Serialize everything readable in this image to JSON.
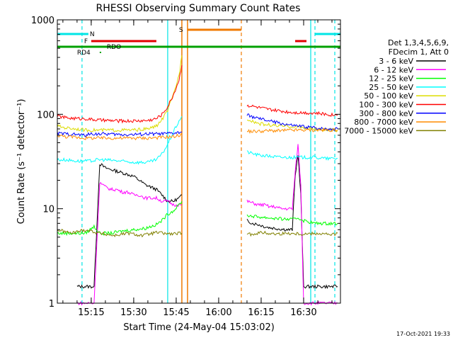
{
  "chart_data": {
    "type": "line",
    "title": "RHESSI Observing Summary Count Rates",
    "xlabel": "Start Time (24-May-04 15:03:02)",
    "ylabel": "Count Rate (s⁻¹ detector⁻¹)",
    "yscale": "log",
    "ylim": [
      1,
      1000
    ],
    "xlim": [
      "15:03:02",
      "16:43:00"
    ],
    "x_ticks": [
      "15:15",
      "15:30",
      "15:45",
      "16:00",
      "16:15",
      "16:30"
    ],
    "y_ticks": [
      "1",
      "10",
      "100",
      "1000"
    ],
    "grid": false,
    "legend_position": "right",
    "legend_header": [
      "Det 1,3,4,5,6,9,",
      "FDecim 1, Att 0"
    ],
    "footer": "17-Oct-2021 19:33",
    "colors": {
      "axes": "#000000",
      "day_marker": "#00e5e5",
      "night": "#00e5e5",
      "flare": "#e00000",
      "saa": "#f07a00",
      "decim": "#00a000"
    },
    "state_flags": [
      {
        "label": "N",
        "color": "#00e5e5",
        "segments": [
          [
            "15:03:02",
            "15:14:00"
          ],
          [
            "16:34:00",
            "16:43:00"
          ]
        ]
      },
      {
        "label": "F",
        "color": "#e00000",
        "segments": [
          [
            "15:15:00",
            "15:38:00"
          ],
          [
            "16:27:00",
            "16:31:00"
          ]
        ]
      },
      {
        "label": "S",
        "color": "#f07a00",
        "segments": [
          [
            "15:49:00",
            "16:08:00"
          ]
        ]
      },
      {
        "label": "RDO",
        "color": "#00a000",
        "segments": [
          [
            "15:03:02",
            "16:43:00"
          ]
        ]
      },
      {
        "label": "RD4",
        "color": "#00a000",
        "segments": [
          [
            "15:18:00",
            "15:18:30"
          ]
        ]
      }
    ],
    "series": [
      {
        "name": "3 - 6 keV",
        "color": "#000000",
        "x": [
          "15:10:00",
          "15:12:00",
          "15:14:00",
          "15:16:00",
          "15:18:00",
          "15:20:00",
          "15:22:00",
          "15:24:00",
          "15:26:00",
          "15:28:00",
          "15:30:00",
          "15:32:00",
          "15:34:00",
          "15:36:00",
          "15:38:00",
          "15:40:00",
          "15:42:00",
          "15:44:00",
          "15:46:00",
          "15:47:00",
          "16:10:00",
          "16:12:00",
          "16:14:00",
          "16:16:00",
          "16:18:00",
          "16:20:00",
          "16:22:00",
          "16:24:00",
          "16:26:00",
          "16:27:00",
          "16:28:00",
          "16:29:00",
          "16:30:00",
          "16:32:00",
          "16:34:00",
          "16:36:00",
          "16:38:00",
          "16:40:00",
          "16:42:00"
        ],
        "values": [
          1.5,
          1.5,
          1.5,
          1.5,
          30,
          27,
          26,
          25,
          24,
          23,
          22,
          20,
          18,
          17,
          16,
          14,
          12,
          12,
          13,
          14,
          7.5,
          7,
          6.8,
          6.5,
          6.3,
          6.2,
          6.1,
          6.0,
          6.0,
          22,
          38,
          14,
          1.5,
          1.5,
          1.5,
          1.5,
          1.5,
          1.5,
          1.5
        ]
      },
      {
        "name": "6 - 12 keV",
        "color": "#ff00ff",
        "x": [
          "15:10:00",
          "15:12:00",
          "15:14:00",
          "15:16:00",
          "15:18:00",
          "15:20:00",
          "15:22:00",
          "15:24:00",
          "15:26:00",
          "15:28:00",
          "15:30:00",
          "15:32:00",
          "15:34:00",
          "15:36:00",
          "15:38:00",
          "15:40:00",
          "15:42:00",
          "15:44:00",
          "15:46:00",
          "15:47:00",
          "16:10:00",
          "16:12:00",
          "16:14:00",
          "16:16:00",
          "16:18:00",
          "16:20:00",
          "16:22:00",
          "16:24:00",
          "16:26:00",
          "16:27:00",
          "16:28:00",
          "16:29:00",
          "16:30:00",
          "16:32:00",
          "16:34:00",
          "16:36:00",
          "16:38:00",
          "16:40:00",
          "16:42:00"
        ],
        "values": [
          1,
          1,
          1,
          1,
          19,
          17,
          16,
          16,
          15,
          15,
          14,
          14,
          13,
          13,
          13,
          12,
          12,
          11,
          11,
          11,
          12,
          11.5,
          11,
          11,
          10.5,
          10.5,
          10,
          10,
          10,
          24,
          48,
          18,
          1,
          1,
          1,
          1,
          1,
          1,
          1
        ]
      },
      {
        "name": "12 - 25 keV",
        "color": "#00ff00",
        "x": [
          "15:03:00",
          "15:08:00",
          "15:13:00",
          "15:16:00",
          "15:18:00",
          "15:22:00",
          "15:26:00",
          "15:30:00",
          "15:34:00",
          "15:38:00",
          "15:40:00",
          "15:42:00",
          "15:44:00",
          "15:46:00",
          "15:47:00",
          "16:10:00",
          "16:14:00",
          "16:18:00",
          "16:22:00",
          "16:26:00",
          "16:28:00",
          "16:30:00",
          "16:34:00",
          "16:38:00",
          "16:42:00"
        ],
        "values": [
          5.5,
          5.5,
          5.5,
          6.5,
          5.5,
          5.5,
          5.8,
          6.0,
          6.2,
          6.8,
          7.5,
          8.8,
          9.5,
          11,
          12,
          8.5,
          8.2,
          8.0,
          7.8,
          7.7,
          8.0,
          7.5,
          7.0,
          7.0,
          7.0
        ]
      },
      {
        "name": "25 - 50 keV",
        "color": "#00ffff",
        "x": [
          "15:03:00",
          "15:06:00",
          "15:10:00",
          "15:13:00",
          "15:15:00",
          "15:17:00",
          "15:20:00",
          "15:25:00",
          "15:30:00",
          "15:35:00",
          "15:38:00",
          "15:40:00",
          "15:42:00",
          "15:44:00",
          "15:46:00",
          "15:47:00",
          "16:10:00",
          "16:14:00",
          "16:18:00",
          "16:22:00",
          "16:26:00",
          "16:30:00",
          "16:34:00",
          "16:38:00",
          "16:42:00"
        ],
        "values": [
          33,
          33,
          32,
          32,
          32,
          33,
          33,
          32,
          31,
          31,
          33,
          38,
          48,
          65,
          85,
          95,
          40,
          37,
          36,
          35,
          35,
          35,
          35,
          34,
          34
        ]
      },
      {
        "name": "50 - 100 keV",
        "color": "#dcdc00",
        "x": [
          "15:03:00",
          "15:06:00",
          "15:10:00",
          "15:13:00",
          "15:15:00",
          "15:20:00",
          "15:25:00",
          "15:30:00",
          "15:35:00",
          "15:38:00",
          "15:40:00",
          "15:42:00",
          "15:44:00",
          "15:46:00",
          "15:47:00",
          "16:10:00",
          "16:14:00",
          "16:18:00",
          "16:22:00",
          "16:26:00",
          "16:30:00",
          "16:34:00",
          "16:38:00",
          "16:42:00"
        ],
        "values": [
          75,
          72,
          70,
          68,
          68,
          68,
          68,
          68,
          70,
          75,
          88,
          110,
          160,
          260,
          420,
          90,
          80,
          77,
          75,
          74,
          72,
          70,
          68,
          68
        ]
      },
      {
        "name": "100 - 300 keV",
        "color": "#ff0000",
        "x": [
          "15:03:00",
          "15:06:00",
          "15:10:00",
          "15:13:00",
          "15:15:00",
          "15:20:00",
          "15:25:00",
          "15:30:00",
          "15:35:00",
          "15:38:00",
          "15:40:00",
          "15:42:00",
          "15:44:00",
          "15:46:00",
          "15:47:00",
          "16:10:00",
          "16:14:00",
          "16:18:00",
          "16:22:00",
          "16:26:00",
          "16:30:00",
          "16:34:00",
          "16:38:00",
          "16:42:00"
        ],
        "values": [
          96,
          92,
          90,
          90,
          88,
          86,
          85,
          85,
          86,
          90,
          100,
          120,
          160,
          230,
          330,
          125,
          118,
          112,
          108,
          105,
          104,
          103,
          100,
          98
        ]
      },
      {
        "name": "300 - 800 keV",
        "color": "#0000ff",
        "x": [
          "15:03:00",
          "15:06:00",
          "15:10:00",
          "15:13:00",
          "15:15:00",
          "15:20:00",
          "15:25:00",
          "15:30:00",
          "15:35:00",
          "15:40:00",
          "15:44:00",
          "15:46:00",
          "15:47:00",
          "16:10:00",
          "16:14:00",
          "16:18:00",
          "16:22:00",
          "16:26:00",
          "16:30:00",
          "16:34:00",
          "16:38:00",
          "16:42:00"
        ],
        "values": [
          63,
          62,
          61,
          60,
          62,
          62,
          61,
          61,
          62,
          62,
          63,
          64,
          65,
          98,
          90,
          85,
          80,
          76,
          74,
          72,
          70,
          70
        ]
      },
      {
        "name": "800 - 7000 keV",
        "color": "#ff8c00",
        "x": [
          "15:03:00",
          "15:06:00",
          "15:10:00",
          "15:13:00",
          "15:15:00",
          "15:20:00",
          "15:25:00",
          "15:30:00",
          "15:35:00",
          "15:40:00",
          "15:44:00",
          "15:46:00",
          "15:47:00",
          "16:10:00",
          "16:14:00",
          "16:18:00",
          "16:22:00",
          "16:26:00",
          "16:30:00",
          "16:34:00",
          "16:38:00",
          "16:42:00"
        ],
        "values": [
          60,
          58,
          57,
          56,
          56,
          56,
          56,
          56,
          56,
          57,
          58,
          60,
          61,
          66,
          66,
          67,
          67,
          68,
          68,
          68,
          68,
          68
        ]
      },
      {
        "name": "7000 - 15000 keV",
        "color": "#808000",
        "x": [
          "15:03:00",
          "15:08:00",
          "15:13:00",
          "15:18:00",
          "15:23:00",
          "15:28:00",
          "15:33:00",
          "15:38:00",
          "15:43:00",
          "15:47:00",
          "16:10:00",
          "16:15:00",
          "16:20:00",
          "16:25:00",
          "16:30:00",
          "16:35:00",
          "16:40:00",
          "16:42:00"
        ],
        "values": [
          6,
          5.5,
          6,
          5.5,
          5.2,
          5.5,
          5.2,
          5.6,
          5.4,
          5.5,
          5.3,
          5.6,
          5.4,
          5.5,
          5.4,
          5.5,
          5.3,
          5.5
        ]
      }
    ]
  }
}
